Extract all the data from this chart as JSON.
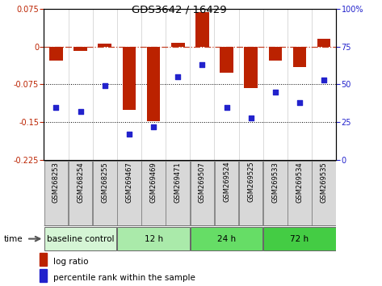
{
  "title": "GDS3642 / 16429",
  "samples": [
    "GSM268253",
    "GSM268254",
    "GSM268255",
    "GSM269467",
    "GSM269469",
    "GSM269471",
    "GSM269507",
    "GSM269524",
    "GSM269525",
    "GSM269533",
    "GSM269534",
    "GSM269535"
  ],
  "log_ratio": [
    -0.028,
    -0.008,
    0.005,
    -0.125,
    -0.148,
    0.008,
    0.068,
    -0.052,
    -0.082,
    -0.028,
    -0.04,
    0.016
  ],
  "percentile_rank": [
    35,
    32,
    49,
    17,
    22,
    55,
    63,
    35,
    28,
    45,
    38,
    53
  ],
  "groups": [
    {
      "label": "baseline control",
      "start": 0,
      "end": 3,
      "color": "#d5f5d5"
    },
    {
      "label": "12 h",
      "start": 3,
      "end": 6,
      "color": "#aaeaaa"
    },
    {
      "label": "24 h",
      "start": 6,
      "end": 9,
      "color": "#66dd66"
    },
    {
      "label": "72 h",
      "start": 9,
      "end": 12,
      "color": "#44cc44"
    }
  ],
  "ylim_left": [
    -0.225,
    0.075
  ],
  "ylim_right": [
    0,
    100
  ],
  "yticks_left": [
    0.075,
    0.0,
    -0.075,
    -0.15,
    -0.225
  ],
  "yticks_right": [
    100,
    75,
    50,
    25,
    0
  ],
  "bar_color": "#bb2200",
  "dot_color": "#2222cc",
  "cell_bg": "#d8d8d8",
  "background_color": "#ffffff"
}
